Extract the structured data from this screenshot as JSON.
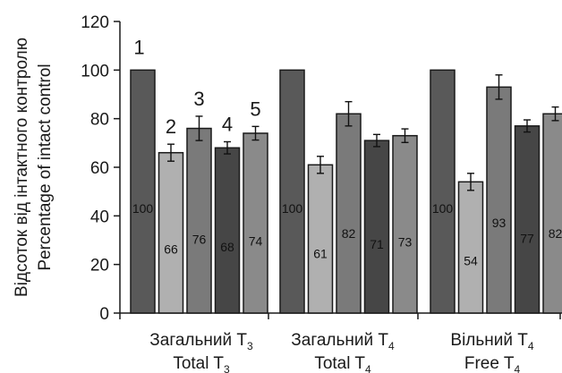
{
  "chart_data": {
    "type": "bar",
    "ylabel_lines": [
      "Відсоток від інтактного контролю",
      "Percentage of intact control"
    ],
    "ylim": [
      0,
      120
    ],
    "yticks": [
      0,
      20,
      40,
      60,
      80,
      100,
      120
    ],
    "categories": [
      {
        "line1": "Загальний T",
        "line1_sub": "3",
        "line2": "Total T",
        "line2_sub": "3"
      },
      {
        "line1": "Загальний T",
        "line1_sub": "4",
        "line2": "Total T",
        "line2_sub": "4"
      },
      {
        "line1": "Вільний T",
        "line1_sub": "4",
        "line2": "Free T",
        "line2_sub": "4"
      }
    ],
    "group_numbers": [
      "1",
      "2",
      "3",
      "4",
      "5"
    ],
    "series": [
      {
        "values": [
          100,
          100,
          100
        ],
        "errors": [
          0,
          0,
          0
        ],
        "color": "#595959"
      },
      {
        "values": [
          66,
          61,
          54
        ],
        "errors": [
          3.5,
          3.5,
          3.5
        ],
        "color": "#b0b0b0"
      },
      {
        "values": [
          76,
          82,
          93
        ],
        "errors": [
          5,
          5,
          5
        ],
        "color": "#7a7a7a"
      },
      {
        "values": [
          68,
          71,
          77
        ],
        "errors": [
          2.5,
          2.5,
          2.5
        ],
        "color": "#464646"
      },
      {
        "values": [
          74,
          73,
          82
        ],
        "errors": [
          2.8,
          2.8,
          2.8
        ],
        "color": "#8a8a8a"
      }
    ],
    "data_labels": [
      [
        "100",
        "66",
        "76",
        "68",
        "74"
      ],
      [
        "100",
        "61",
        "82",
        "71",
        "73"
      ],
      [
        "100",
        "54",
        "93",
        "77",
        "82"
      ]
    ],
    "grid": false,
    "legend": "none"
  }
}
